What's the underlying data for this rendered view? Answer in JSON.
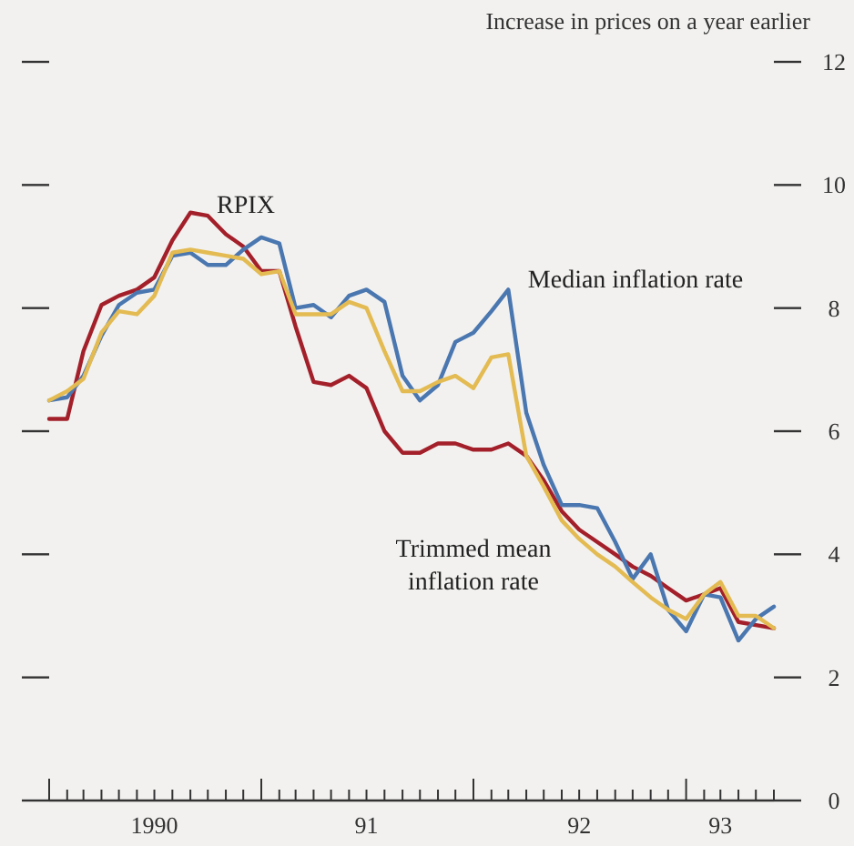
{
  "chart_data": {
    "type": "line",
    "ylabel": "Increase in prices on a year earlier",
    "x": [
      "1990-01",
      "1990-02",
      "1990-03",
      "1990-04",
      "1990-05",
      "1990-06",
      "1990-07",
      "1990-08",
      "1990-09",
      "1990-10",
      "1990-11",
      "1990-12",
      "1991-01",
      "1991-02",
      "1991-03",
      "1991-04",
      "1991-05",
      "1991-06",
      "1991-07",
      "1991-08",
      "1991-09",
      "1991-10",
      "1991-11",
      "1991-12",
      "1992-01",
      "1992-02",
      "1992-03",
      "1992-04",
      "1992-05",
      "1992-06",
      "1992-07",
      "1992-08",
      "1992-09",
      "1992-10",
      "1992-11",
      "1992-12",
      "1993-01",
      "1993-02",
      "1993-03",
      "1993-04",
      "1993-05",
      "1993-06"
    ],
    "series": [
      {
        "name": "RPIX",
        "color": "#a3202a",
        "values": [
          6.2,
          6.2,
          7.3,
          8.05,
          8.2,
          8.3,
          8.5,
          9.1,
          9.55,
          9.5,
          9.2,
          9.0,
          8.6,
          8.6,
          7.7,
          6.8,
          6.75,
          6.9,
          6.7,
          6.0,
          5.65,
          5.65,
          5.8,
          5.8,
          5.7,
          5.7,
          5.8,
          5.6,
          5.2,
          4.7,
          4.4,
          4.2,
          4.0,
          3.8,
          3.65,
          3.45,
          3.25,
          3.35,
          3.45,
          2.9,
          2.85,
          2.8
        ]
      },
      {
        "name": "Median inflation rate",
        "color": "#4a77b0",
        "values": [
          6.5,
          6.55,
          6.9,
          7.55,
          8.05,
          8.25,
          8.3,
          8.85,
          8.9,
          8.7,
          8.7,
          8.95,
          9.15,
          9.05,
          8.0,
          8.05,
          7.85,
          8.2,
          8.3,
          8.1,
          6.9,
          6.5,
          6.75,
          7.45,
          7.6,
          7.95,
          8.3,
          6.3,
          5.45,
          4.8,
          4.8,
          4.75,
          4.2,
          3.6,
          4.0,
          3.1,
          2.75,
          3.35,
          3.3,
          2.6,
          2.95,
          3.15
        ]
      },
      {
        "name": "Trimmed mean inflation rate",
        "color": "#e3bb52",
        "values": [
          6.5,
          6.65,
          6.85,
          7.6,
          7.95,
          7.9,
          8.2,
          8.9,
          8.95,
          8.9,
          8.85,
          8.8,
          8.55,
          8.6,
          7.9,
          7.9,
          7.9,
          8.1,
          8.0,
          7.3,
          6.65,
          6.65,
          6.8,
          6.9,
          6.7,
          7.2,
          7.25,
          5.6,
          5.1,
          4.55,
          4.25,
          4.0,
          3.8,
          3.55,
          3.3,
          3.1,
          2.95,
          3.35,
          3.55,
          3.0,
          3.0,
          2.8
        ]
      }
    ],
    "xlim": [
      "1990-01",
      "1993-06"
    ],
    "xticks": [
      {
        "value": "1990-01",
        "label": null
      },
      {
        "value": "1990-02",
        "label": null
      },
      {
        "value": "1990-03",
        "label": null
      },
      {
        "value": "1990-04",
        "label": null
      },
      {
        "value": "1990-05",
        "label": null
      },
      {
        "value": "1990-06",
        "label": null
      },
      {
        "value": "1990-07",
        "label": "1990"
      },
      {
        "value": "1990-08",
        "label": null
      },
      {
        "value": "1990-09",
        "label": null
      },
      {
        "value": "1990-10",
        "label": null
      },
      {
        "value": "1990-11",
        "label": null
      },
      {
        "value": "1990-12",
        "label": null
      },
      {
        "value": "1991-01",
        "label": null
      },
      {
        "value": "1991-02",
        "label": null
      },
      {
        "value": "1991-03",
        "label": null
      },
      {
        "value": "1991-04",
        "label": null
      },
      {
        "value": "1991-05",
        "label": null
      },
      {
        "value": "1991-06",
        "label": null
      },
      {
        "value": "1991-07",
        "label": "91"
      },
      {
        "value": "1991-08",
        "label": null
      },
      {
        "value": "1991-09",
        "label": null
      },
      {
        "value": "1991-10",
        "label": null
      },
      {
        "value": "1991-11",
        "label": null
      },
      {
        "value": "1991-12",
        "label": null
      },
      {
        "value": "1992-01",
        "label": null
      },
      {
        "value": "1992-02",
        "label": null
      },
      {
        "value": "1992-03",
        "label": null
      },
      {
        "value": "1992-04",
        "label": null
      },
      {
        "value": "1992-05",
        "label": null
      },
      {
        "value": "1992-06",
        "label": null
      },
      {
        "value": "1992-07",
        "label": "92"
      },
      {
        "value": "1992-08",
        "label": null
      },
      {
        "value": "1992-09",
        "label": null
      },
      {
        "value": "1992-10",
        "label": null
      },
      {
        "value": "1992-11",
        "label": null
      },
      {
        "value": "1992-12",
        "label": null
      },
      {
        "value": "1993-01",
        "label": null
      },
      {
        "value": "1993-02",
        "label": null
      },
      {
        "value": "1993-03",
        "label": "93"
      },
      {
        "value": "1993-04",
        "label": null
      },
      {
        "value": "1993-05",
        "label": null
      },
      {
        "value": "1993-06",
        "label": null
      }
    ],
    "ylim": [
      0,
      12
    ],
    "yticks": [
      0,
      2,
      4,
      6,
      8,
      10,
      12
    ],
    "grid": false,
    "line_style": "solid"
  }
}
